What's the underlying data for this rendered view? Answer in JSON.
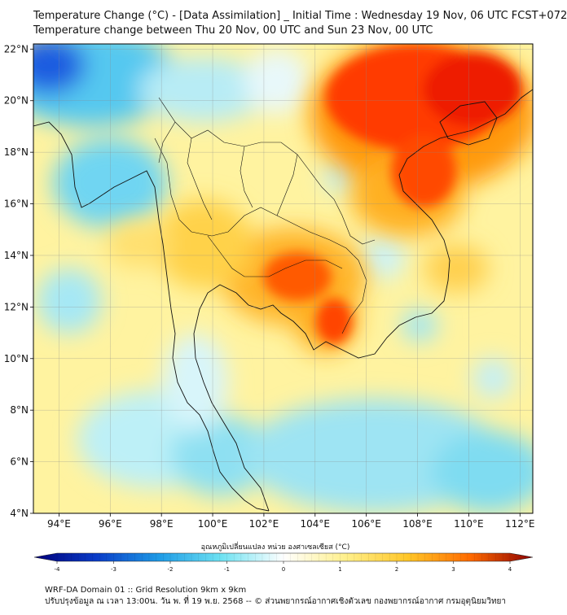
{
  "title_line_1": "Temperature Change (°C) - [Data Assimilation] _ Initial Time : Wednesday 19 Nov, 06 UTC FCST+072",
  "title_line_2": "Temperature change between Thu 20 Nov, 00 UTC and Sun 23 Nov, 00 UTC",
  "map": {
    "lon_range": [
      93,
      112.5
    ],
    "lat_range": [
      4,
      22.2
    ],
    "lat_ticks": [
      {
        "value": 4,
        "label": "4°N"
      },
      {
        "value": 6,
        "label": "6°N"
      },
      {
        "value": 8,
        "label": "8°N"
      },
      {
        "value": 10,
        "label": "10°N"
      },
      {
        "value": 12,
        "label": "12°N"
      },
      {
        "value": 14,
        "label": "14°N"
      },
      {
        "value": 16,
        "label": "16°N"
      },
      {
        "value": 18,
        "label": "18°N"
      },
      {
        "value": 20,
        "label": "20°N"
      },
      {
        "value": 22,
        "label": "22°N"
      }
    ],
    "lon_ticks": [
      {
        "value": 94,
        "label": "94°E"
      },
      {
        "value": 96,
        "label": "96°E"
      },
      {
        "value": 98,
        "label": "98°E"
      },
      {
        "value": 100,
        "label": "100°E"
      },
      {
        "value": 102,
        "label": "102°E"
      },
      {
        "value": 104,
        "label": "104°E"
      },
      {
        "value": 106,
        "label": "106°E"
      },
      {
        "value": 108,
        "label": "108°E"
      },
      {
        "value": 110,
        "label": "110°E"
      },
      {
        "value": 112,
        "label": "112°E"
      }
    ]
  },
  "colorbar": {
    "label": "อุณหภูมิเปลี่ยนแปลง หน่วย องศาเซลเซียส (°C)",
    "range": [
      -4,
      4
    ],
    "ticks": [
      {
        "value": -4,
        "label": "-4"
      },
      {
        "value": -3,
        "label": "-3"
      },
      {
        "value": -2,
        "label": "-2"
      },
      {
        "value": -1,
        "label": "-1"
      },
      {
        "value": 0,
        "label": "0"
      },
      {
        "value": 1,
        "label": "1"
      },
      {
        "value": 2,
        "label": "2"
      },
      {
        "value": 3,
        "label": "3"
      },
      {
        "value": 4,
        "label": "4"
      }
    ],
    "colors": {
      "neg4": "#00007a",
      "neg3": "#0a3cc8",
      "neg2": "#1e9be6",
      "neg1": "#6ee2f2",
      "zero": "#ffffff",
      "pos1": "#fff08c",
      "pos2": "#ffc628",
      "pos3": "#ff6a00",
      "pos4": "#8c0000"
    }
  },
  "footer_line_1": "WRF-DA Domain 01 :: Grid Resolution 9km x 9km",
  "footer_line_2": "ปรับปรุงข้อมูล ณ เวลา 13:00น. วัน พ. ที่ 19 พ.ย. 2568 -- © ส่วนพยากรณ์อากาศเชิงตัวเลข กองพยากรณ์อากาศ กรมอุตุนิยมวิทยา"
}
